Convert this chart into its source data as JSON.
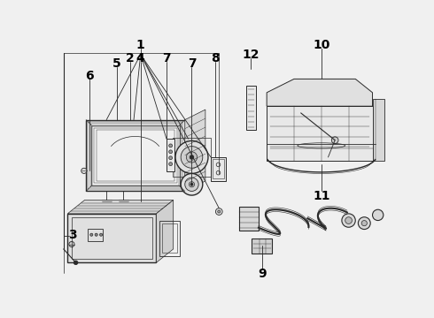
{
  "bg_color": "#f0f0f0",
  "line_color": "#2a2a2a",
  "label_color": "#000000",
  "fig_width": 4.9,
  "fig_height": 3.6,
  "dpi": 100
}
